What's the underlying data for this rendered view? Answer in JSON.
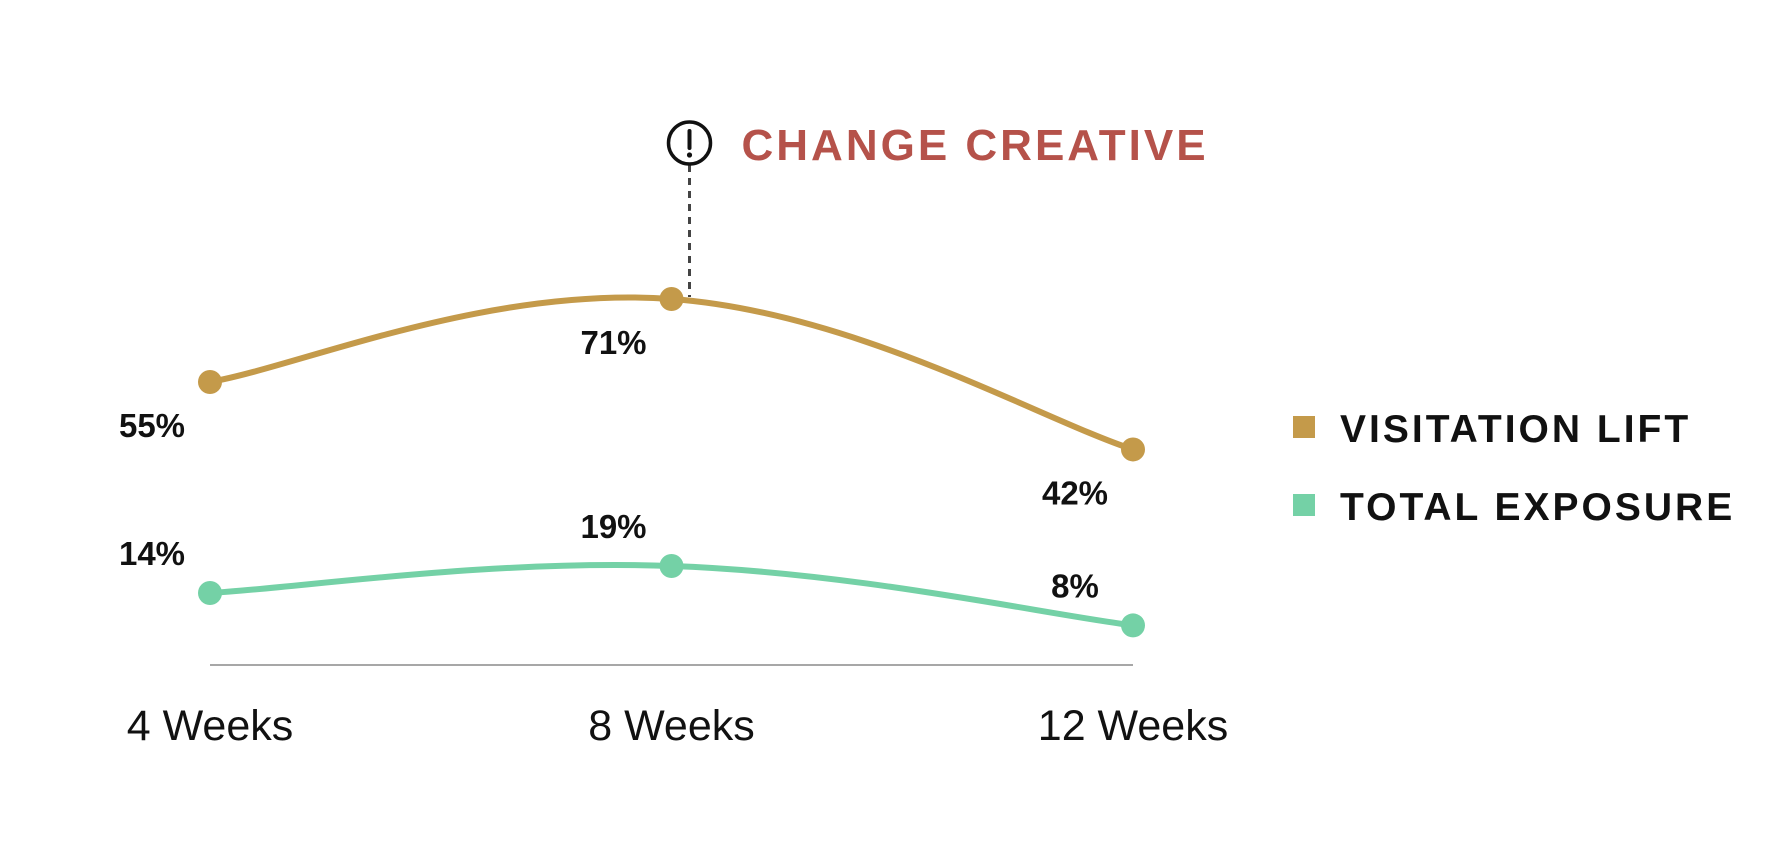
{
  "chart_data": {
    "type": "line",
    "categories": [
      "4 Weeks",
      "8 Weeks",
      "12 Weeks"
    ],
    "series": [
      {
        "name": "VISITATION LIFT",
        "values": [
          55,
          71,
          42
        ],
        "labels": [
          "55%",
          "71%",
          "42%"
        ],
        "color": "#C49A4A"
      },
      {
        "name": "TOTAL EXPOSURE",
        "values": [
          14,
          19,
          8
        ],
        "labels": [
          "14%",
          "19%",
          "8%"
        ],
        "color": "#74D1A6"
      }
    ],
    "ylim": [
      0,
      100
    ],
    "grid": false,
    "legend": "right",
    "annotation": {
      "text": "CHANGE CREATIVE",
      "icon": "exclamation-circle-icon",
      "category": "8 Weeks",
      "color": "#B5524A"
    },
    "axis_color": "#8a8a8a"
  }
}
